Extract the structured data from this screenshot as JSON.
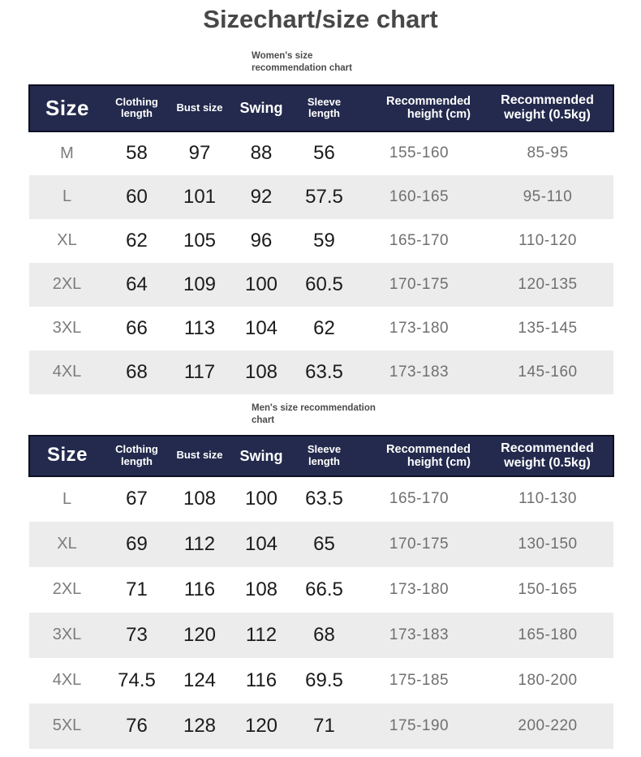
{
  "page": {
    "title": "Sizechart/size chart"
  },
  "colors": {
    "header_bg": "#232a4d",
    "header_border": "#0d1024",
    "header_text": "#ffffff",
    "stripe_bg": "#ececec",
    "title_text": "#484848",
    "caption_text": "#4b4b4b",
    "size_text": "#7c7c7c",
    "value_text": "#1b1b1b",
    "range_text": "#6f6f6f",
    "page_bg": "#ffffff"
  },
  "tables": [
    {
      "caption": "Women's size recommendation chart",
      "columns": [
        "Size",
        "Clothing length",
        "Bust size",
        "Swing",
        "Sleeve length",
        "Recommended height (cm)",
        "Recommended weight (0.5kg)"
      ],
      "rows": [
        {
          "size": "M",
          "clothing_length": "58",
          "bust_size": "97",
          "swing": "88",
          "sleeve_length": "56",
          "height_cm": "155-160",
          "weight_05kg": "85-95"
        },
        {
          "size": "L",
          "clothing_length": "60",
          "bust_size": "101",
          "swing": "92",
          "sleeve_length": "57.5",
          "height_cm": "160-165",
          "weight_05kg": "95-110"
        },
        {
          "size": "XL",
          "clothing_length": "62",
          "bust_size": "105",
          "swing": "96",
          "sleeve_length": "59",
          "height_cm": "165-170",
          "weight_05kg": "110-120"
        },
        {
          "size": "2XL",
          "clothing_length": "64",
          "bust_size": "109",
          "swing": "100",
          "sleeve_length": "60.5",
          "height_cm": "170-175",
          "weight_05kg": "120-135"
        },
        {
          "size": "3XL",
          "clothing_length": "66",
          "bust_size": "113",
          "swing": "104",
          "sleeve_length": "62",
          "height_cm": "173-180",
          "weight_05kg": "135-145"
        },
        {
          "size": "4XL",
          "clothing_length": "68",
          "bust_size": "117",
          "swing": "108",
          "sleeve_length": "63.5",
          "height_cm": "173-183",
          "weight_05kg": "145-160"
        }
      ]
    },
    {
      "caption": "Men's size recommendation chart",
      "columns": [
        "Size",
        "Clothing length",
        "Bust size",
        "Swing",
        "Sleeve length",
        "Recommended height (cm)",
        "Recommended weight (0.5kg)"
      ],
      "rows": [
        {
          "size": "L",
          "clothing_length": "67",
          "bust_size": "108",
          "swing": "100",
          "sleeve_length": "63.5",
          "height_cm": "165-170",
          "weight_05kg": "110-130"
        },
        {
          "size": "XL",
          "clothing_length": "69",
          "bust_size": "112",
          "swing": "104",
          "sleeve_length": "65",
          "height_cm": "170-175",
          "weight_05kg": "130-150"
        },
        {
          "size": "2XL",
          "clothing_length": "71",
          "bust_size": "116",
          "swing": "108",
          "sleeve_length": "66.5",
          "height_cm": "173-180",
          "weight_05kg": "150-165"
        },
        {
          "size": "3XL",
          "clothing_length": "73",
          "bust_size": "120",
          "swing": "112",
          "sleeve_length": "68",
          "height_cm": "173-183",
          "weight_05kg": "165-180"
        },
        {
          "size": "4XL",
          "clothing_length": "74.5",
          "bust_size": "124",
          "swing": "116",
          "sleeve_length": "69.5",
          "height_cm": "175-185",
          "weight_05kg": "180-200"
        },
        {
          "size": "5XL",
          "clothing_length": "76",
          "bust_size": "128",
          "swing": "120",
          "sleeve_length": "71",
          "height_cm": "175-190",
          "weight_05kg": "200-220"
        }
      ]
    }
  ]
}
